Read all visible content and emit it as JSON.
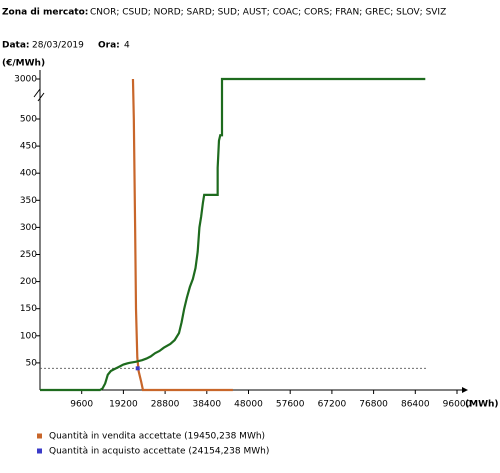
{
  "header": {
    "zone_label": "Zona di mercato:",
    "zones": "CNOR; CSUD; NORD; SARD; SUD; AUST; COAC; CORS; FRAN; GREC; SLOV; SVIZ",
    "date_label": "Data:",
    "date": "28/03/2019",
    "hour_label": "Ora:",
    "hour": "4"
  },
  "chart_data": {
    "type": "line",
    "y_label": "(€/MWh)",
    "x_label": "(MWh)",
    "xlim": [
      0,
      96000
    ],
    "xticks": [
      9600,
      19200,
      28800,
      38400,
      48000,
      57600,
      67200,
      76800,
      86400,
      96000
    ],
    "ylim": [
      0,
      3000
    ],
    "yticks": [
      50,
      100,
      150,
      200,
      250,
      300,
      350,
      400,
      450,
      500,
      3000
    ],
    "axis_break": [
      500,
      3000
    ],
    "reference_line": 40,
    "series": [
      {
        "color": "#c8662a",
        "x": [
          21400,
          21600,
          21900,
          22100,
          22400,
          22700,
          23300,
          23700,
          44400
        ],
        "values": [
          3000,
          500,
          300,
          150,
          60,
          35,
          15,
          0,
          0
        ]
      },
      {
        "color": "#1e6b1e",
        "x": [
          0,
          13800,
          14400,
          15000,
          15600,
          16300,
          17000,
          18000,
          19200,
          20500,
          22000,
          23500,
          24500,
          25500,
          26500,
          27500,
          28500,
          30000,
          31000,
          32000,
          32600,
          33200,
          33800,
          34500,
          35200,
          35800,
          36300,
          36700,
          37100,
          37500,
          37800,
          40900,
          40900,
          41200,
          41500,
          41900,
          41900,
          88700
        ],
        "values": [
          0,
          0,
          3,
          12,
          28,
          35,
          38,
          42,
          47,
          50,
          52,
          55,
          58,
          62,
          68,
          72,
          78,
          85,
          92,
          105,
          125,
          150,
          170,
          190,
          205,
          225,
          255,
          300,
          320,
          345,
          360,
          360,
          410,
          460,
          470,
          470,
          3000,
          3000
        ]
      },
      {
        "color": "#3a3ac8",
        "x": [
          22500
        ],
        "values": [
          40
        ],
        "markers": true
      }
    ],
    "legend": [
      {
        "label": "Quantità in vendita accettate (19450,238 MWh)",
        "color": "#c8662a"
      },
      {
        "label": "Quantità in acquisto accettate (24154,238 MWh)",
        "color": "#3a3ac8"
      }
    ]
  }
}
